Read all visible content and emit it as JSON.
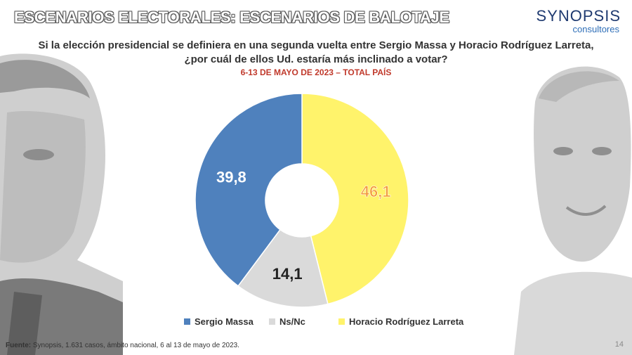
{
  "header": {
    "title": "ESCENARIOS ELECTORALES: ESCENARIOS DE BALOTAJE",
    "logo_top": "SYNOPSIS",
    "logo_bottom": "consultores"
  },
  "question": {
    "line1": "Si la elección presidencial se definiera en una segunda vuelta entre Sergio Massa y Horacio Rodríguez Larreta,",
    "line2": "¿por cuál de ellos Ud. estaría más inclinado a votar?"
  },
  "subtitle": "6-13 DE MAYO DE 2023 – TOTAL PAÍS",
  "chart_data": {
    "type": "pie",
    "donut": true,
    "slices": [
      {
        "label": "Horacio Rodríguez Larreta",
        "value": 46.1,
        "display": "46,1",
        "color": "#FFF36B",
        "label_color": "#F39C3B"
      },
      {
        "label": "Ns/Nc",
        "value": 14.1,
        "display": "14,1",
        "color": "#DADADA",
        "label_color": "#222222"
      },
      {
        "label": "Sergio Massa",
        "value": 39.8,
        "display": "39,8",
        "color": "#4F81BD",
        "label_color": "#FFFFFF"
      }
    ],
    "legend": [
      {
        "label": "Sergio Massa",
        "color": "#4F81BD"
      },
      {
        "label": "Ns/Nc",
        "color": "#DADADA"
      },
      {
        "label": "Horacio Rodríguez Larreta",
        "color": "#FFF36B"
      }
    ],
    "legend_position": "bottom"
  },
  "footer": {
    "source_label": "Fuente:",
    "source_text": " Synopsis, 1.631 casos, ámbito nacional, 6 al 13 de mayo de 2023.",
    "page_number": "14"
  }
}
